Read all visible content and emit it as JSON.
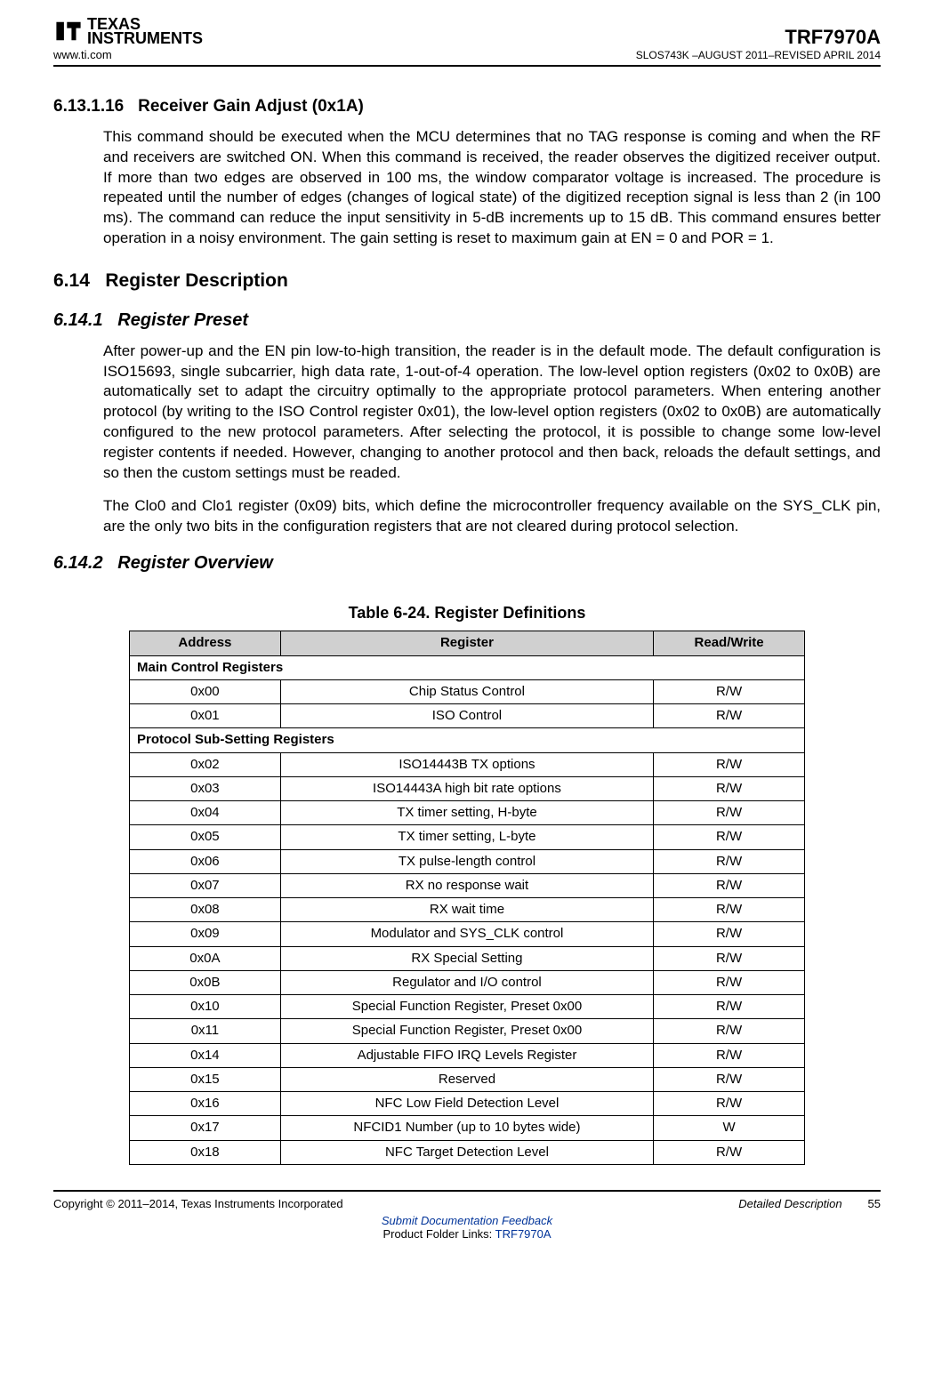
{
  "header": {
    "logo_line1": "TEXAS",
    "logo_line2": "INSTRUMENTS",
    "www": "www.ti.com",
    "partno": "TRF7970A",
    "docinfo": "SLOS743K –AUGUST 2011–REVISED APRIL 2014"
  },
  "sections": {
    "s1_num": "6.13.1.16",
    "s1_title": "Receiver Gain Adjust (0x1A)",
    "s1_para": "This command should be executed when the MCU determines that no TAG response is coming and when the RF and receivers are switched ON. When this command is received, the reader observes the digitized receiver output. If more than two edges are observed in 100 ms, the window comparator voltage is increased. The procedure is repeated until the number of edges (changes of logical state) of the digitized reception signal is less than 2 (in 100 ms). The command can reduce the input sensitivity in 5-dB increments up to 15 dB. This command ensures better operation in a noisy environment. The gain setting is reset to maximum gain at EN = 0 and POR = 1.",
    "s2_num": "6.14",
    "s2_title": "Register Description",
    "s3_num": "6.14.1",
    "s3_title": "Register Preset",
    "s3_para1": "After power-up and the EN pin low-to-high transition, the reader is in the default mode. The default configuration is ISO15693, single subcarrier, high data rate, 1-out-of-4 operation. The low-level option registers (0x02 to 0x0B) are automatically set to adapt the circuitry optimally to the appropriate protocol parameters. When entering another protocol (by writing to the ISO Control register 0x01), the low-level option registers (0x02 to 0x0B) are automatically configured to the new protocol parameters. After selecting the protocol, it is possible to change some low-level register contents if needed. However, changing to another protocol and then back, reloads the default settings, and so then the custom settings must be readed.",
    "s3_para2": "The Clo0 and Clo1 register (0x09) bits, which define the microcontroller frequency available on the SYS_CLK pin, are the only two bits in the configuration registers that are not cleared during protocol selection.",
    "s4_num": "6.14.2",
    "s4_title": "Register Overview"
  },
  "table": {
    "title": "Table 6-24. Register Definitions",
    "columns": [
      "Address",
      "Register",
      "Read/Write"
    ],
    "header_bg": "#d0d0d0",
    "border_color": "#000000",
    "rows": [
      {
        "type": "section",
        "label": "Main Control Registers"
      },
      {
        "addr": "0x00",
        "reg": "Chip Status Control",
        "rw": "R/W"
      },
      {
        "addr": "0x01",
        "reg": "ISO Control",
        "rw": "R/W"
      },
      {
        "type": "section",
        "label": "Protocol Sub-Setting Registers"
      },
      {
        "addr": "0x02",
        "reg": "ISO14443B TX options",
        "rw": "R/W"
      },
      {
        "addr": "0x03",
        "reg": "ISO14443A high bit rate options",
        "rw": "R/W"
      },
      {
        "addr": "0x04",
        "reg": "TX timer setting, H-byte",
        "rw": "R/W"
      },
      {
        "addr": "0x05",
        "reg": "TX timer setting, L-byte",
        "rw": "R/W"
      },
      {
        "addr": "0x06",
        "reg": "TX pulse-length control",
        "rw": "R/W"
      },
      {
        "addr": "0x07",
        "reg": "RX no response wait",
        "rw": "R/W"
      },
      {
        "addr": "0x08",
        "reg": "RX wait time",
        "rw": "R/W"
      },
      {
        "addr": "0x09",
        "reg": "Modulator and SYS_CLK control",
        "rw": "R/W"
      },
      {
        "addr": "0x0A",
        "reg": "RX Special Setting",
        "rw": "R/W"
      },
      {
        "addr": "0x0B",
        "reg": "Regulator and I/O control",
        "rw": "R/W"
      },
      {
        "addr": "0x10",
        "reg": "Special Function Register, Preset 0x00",
        "rw": "R/W"
      },
      {
        "addr": "0x11",
        "reg": "Special Function Register, Preset 0x00",
        "rw": "R/W"
      },
      {
        "addr": "0x14",
        "reg": "Adjustable FIFO IRQ Levels Register",
        "rw": "R/W"
      },
      {
        "addr": "0x15",
        "reg": "Reserved",
        "rw": "R/W"
      },
      {
        "addr": "0x16",
        "reg": "NFC Low Field Detection Level",
        "rw": "R/W"
      },
      {
        "addr": "0x17",
        "reg": "NFCID1 Number (up to 10 bytes wide)",
        "rw": "W"
      },
      {
        "addr": "0x18",
        "reg": "NFC Target Detection Level",
        "rw": "R/W"
      }
    ]
  },
  "footer": {
    "copyright": "Copyright © 2011–2014, Texas Instruments Incorporated",
    "section_name": "Detailed Description",
    "page_num": "55",
    "link1": "Submit Documentation Feedback",
    "pf_prefix": "Product Folder Links: ",
    "pf_link": "TRF7970A"
  }
}
